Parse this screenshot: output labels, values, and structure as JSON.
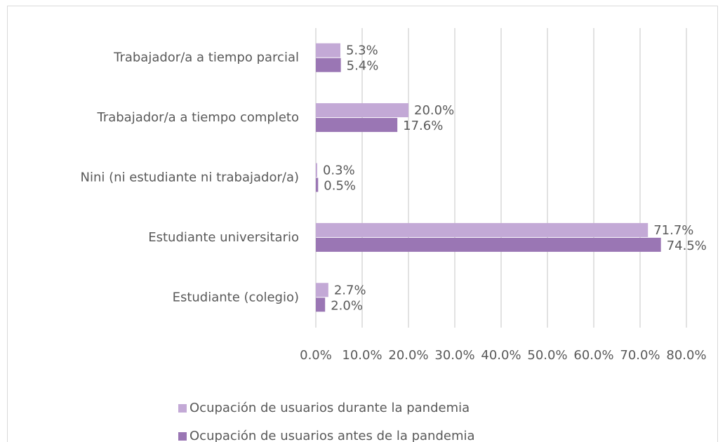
{
  "chart_data": {
    "type": "hbar",
    "categories": [
      "Trabajador/a a tiempo parcial",
      "Trabajador/a a tiempo completo",
      "Nini (ni estudiante ni trabajador/a)",
      "Estudiante universitario",
      "Estudiante (colegio)"
    ],
    "series": [
      {
        "name": "Ocupación de usuarios durante la pandemia",
        "color": "#c3a9d6",
        "values": [
          5.3,
          20.0,
          0.3,
          71.7,
          2.7
        ],
        "value_labels": [
          "5.3%",
          "20.0%",
          "0.3%",
          "71.7%",
          "2.7%"
        ]
      },
      {
        "name": "Ocupación de usuarios antes de la pandemia",
        "color": "#9a76b4",
        "values": [
          5.4,
          17.6,
          0.5,
          74.5,
          2.0
        ],
        "value_labels": [
          "5.4%",
          "17.6%",
          "0.5%",
          "74.5%",
          "2.0%"
        ]
      }
    ],
    "xlim": [
      0,
      80
    ],
    "xticks": [
      {
        "value": 0,
        "label": "0.0%"
      },
      {
        "value": 10,
        "label": "10.0%"
      },
      {
        "value": 20,
        "label": "20.0%"
      },
      {
        "value": 30,
        "label": "30.0%"
      },
      {
        "value": 40,
        "label": "40.0%"
      },
      {
        "value": 50,
        "label": "50.0%"
      },
      {
        "value": 60,
        "label": "60.0%"
      },
      {
        "value": 70,
        "label": "70.0%"
      },
      {
        "value": 80,
        "label": "80.0%"
      }
    ],
    "grid": true,
    "legend": "bottom"
  }
}
